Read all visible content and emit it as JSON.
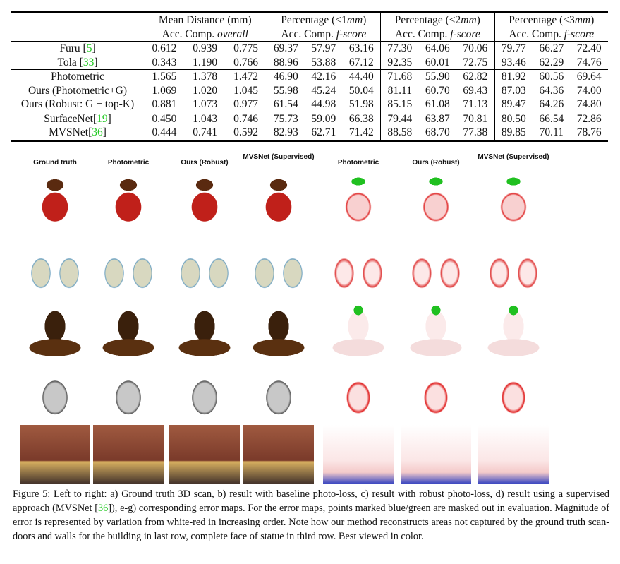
{
  "table": {
    "group_headers": [
      {
        "label": "Mean Distance (mm)",
        "sub": [
          "Acc.",
          "Comp.",
          "overall"
        ]
      },
      {
        "label": "Percentage (<1mm)",
        "sub": [
          "Acc.",
          "Comp.",
          "f-score"
        ]
      },
      {
        "label": "Percentage (<2mm)",
        "sub": [
          "Acc.",
          "Comp.",
          "f-score"
        ]
      },
      {
        "label": "Percentage (<3mm)",
        "sub": [
          "Acc.",
          "Comp.",
          "f-score"
        ]
      }
    ],
    "rows": [
      {
        "method": "Furu ",
        "cite": "5",
        "values": [
          "0.612",
          "0.939",
          "0.775",
          "69.37",
          "57.97",
          "63.16",
          "77.30",
          "64.06",
          "70.06",
          "79.77",
          "66.27",
          "72.40"
        ]
      },
      {
        "method": "Tola ",
        "cite": "33",
        "values": [
          "0.343",
          "1.190",
          "0.766",
          "88.96",
          "53.88",
          "67.12",
          "92.35",
          "60.01",
          "72.75",
          "93.46",
          "62.29",
          "74.76"
        ]
      },
      {
        "method": "Photometric",
        "cite": "",
        "values": [
          "1.565",
          "1.378",
          "1.472",
          "46.90",
          "42.16",
          "44.40",
          "71.68",
          "55.90",
          "62.82",
          "81.92",
          "60.56",
          "69.64"
        ]
      },
      {
        "method": "Ours (Photometric+G)",
        "cite": "",
        "values": [
          "1.069",
          "1.020",
          "1.045",
          "55.98",
          "45.24",
          "50.04",
          "81.11",
          "60.70",
          "69.43",
          "87.03",
          "64.36",
          "74.00"
        ]
      },
      {
        "method": "Ours (Robust: G + top-K)",
        "cite": "",
        "values": [
          "0.881",
          "1.073",
          "0.977",
          "61.54",
          "44.98",
          "51.98",
          "85.15",
          "61.08",
          "71.13",
          "89.47",
          "64.26",
          "74.80"
        ]
      },
      {
        "method": "SurfaceNet",
        "cite": "19",
        "values": [
          "0.450",
          "1.043",
          "0.746",
          "75.73",
          "59.09",
          "66.38",
          "79.44",
          "63.87",
          "70.81",
          "80.50",
          "66.54",
          "72.86"
        ]
      },
      {
        "method": "MVSNet",
        "cite": "36",
        "values": [
          "0.444",
          "0.741",
          "0.592",
          "82.93",
          "62.71",
          "71.42",
          "88.58",
          "68.70",
          "77.38",
          "89.85",
          "70.11",
          "78.76"
        ]
      }
    ]
  },
  "figure": {
    "columns": [
      "Ground truth",
      "Photometric",
      "Ours (Robust)",
      "MVSNet (Supervised)",
      "Photometric",
      "Ours (Robust)",
      "MVSNet (Supervised)"
    ],
    "rows": [
      "doll",
      "cans",
      "statue",
      "kettle",
      "building"
    ]
  },
  "caption": {
    "text_a": "Figure 5: Left to right: a) Ground truth 3D scan, b) result with baseline photo-loss, c) result with robust photo-loss, d) result using a supervised approach (MVSNet [",
    "cite": "36",
    "text_b": "]), e-g) corresponding error maps. For the error maps, points marked blue/green are masked out in evaluation. Magnitude of error is represented by variation from white-red in increasing order. Note how our method reconstructs areas not captured by the ground truth scan- doors and walls for the building in last row, complete face of statue in third row. Best viewed in color."
  },
  "colors": {
    "cite": "#22c922",
    "error_red": "#e02020",
    "mask_blue": "#1030d0",
    "mask_green": "#20c020"
  }
}
